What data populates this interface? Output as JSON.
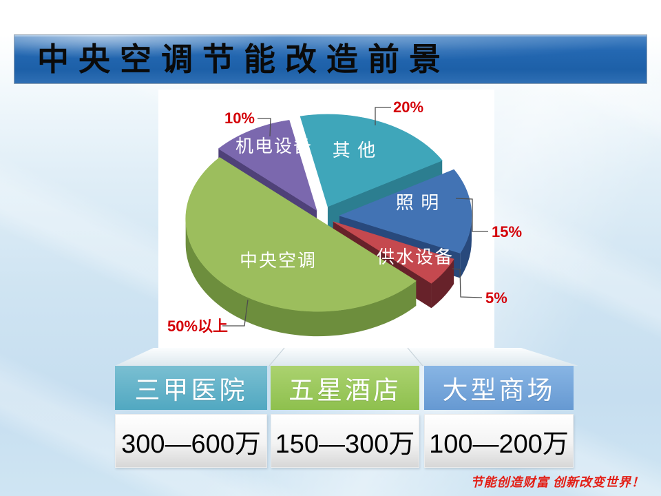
{
  "slide": {
    "title": "中央空调节能改造前景",
    "slogan": "节能创造财富 创新改变世界！",
    "background_color": "#cde3f1",
    "banner_color": "#2166b0"
  },
  "chart_data": {
    "type": "pie",
    "style": "3d-exploded",
    "slices": [
      {
        "label": "其 他",
        "value": 20,
        "value_label": "20%",
        "color_top": "#3fa6ba",
        "color_side": "#2c7e90"
      },
      {
        "label": "照 明",
        "value": 15,
        "value_label": "15%",
        "color_top": "#4273b4",
        "color_side": "#28497c"
      },
      {
        "label": "供水设备",
        "value": 5,
        "value_label": "5%",
        "color_top": "#c5494f",
        "color_side": "#67222a"
      },
      {
        "label": "中央空调",
        "value": 50,
        "value_label": "50%以上",
        "color_top": "#9cbe5d",
        "color_side": "#6d8e3d"
      },
      {
        "label": "机电设备",
        "value": 10,
        "value_label": "10%",
        "color_top": "#7b68ae",
        "color_side": "#4f4178"
      }
    ],
    "layout": {
      "start_angle_deg": -12,
      "depth": 36,
      "label_color": "#ffffff",
      "callout_color": "#d40008",
      "legend": "none",
      "labels_on_slices": true
    }
  },
  "table": {
    "columns": [
      {
        "header": "三甲医院",
        "value": "300—600万",
        "header_color": "#51a8c1",
        "header_color_top": "#7abfd2"
      },
      {
        "header": "五星酒店",
        "value": "150—300万",
        "header_color": "#8ec04e",
        "header_color_top": "#abd26f"
      },
      {
        "header": "大型商场",
        "value": "100—200万",
        "header_color": "#6699d2",
        "header_color_top": "#88b5e4"
      }
    ]
  }
}
